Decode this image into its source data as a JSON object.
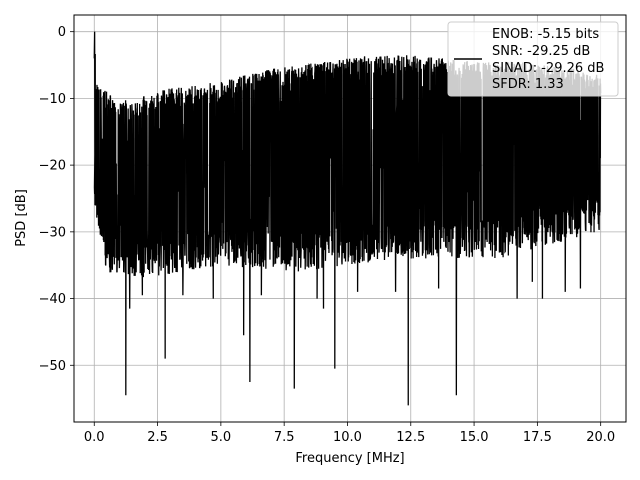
{
  "chart_data": {
    "type": "line",
    "title": "",
    "xlabel": "Frequency [MHz]",
    "ylabel": "PSD [dB]",
    "xlim": [
      -0.8,
      21.0
    ],
    "ylim": [
      -58.5,
      2.5
    ],
    "grid": true,
    "legend_position": "top-right",
    "x_ticks": [
      0.0,
      2.5,
      5.0,
      7.5,
      10.0,
      12.5,
      15.0,
      17.5,
      20.0
    ],
    "x_tick_labels": [
      "0.0",
      "2.5",
      "5.0",
      "7.5",
      "10.0",
      "12.5",
      "15.0",
      "17.5",
      "20.0"
    ],
    "y_ticks": [
      0,
      -10,
      -20,
      -30,
      -40,
      -50
    ],
    "y_tick_labels": [
      "0",
      "−10",
      "−20",
      "−30",
      "−40",
      "−50"
    ],
    "legend": {
      "lines": [
        "ENOB: -5.15 bits",
        "SNR: -29.25 dB",
        "SINAD: -29.26 dB",
        "SFDR: 1.33"
      ]
    },
    "series": [
      {
        "color": "#000000",
        "x_start": 0.0,
        "x_end": 20.0,
        "noise_floor_db": -20,
        "upper_envelope_db": [
          [
            0.0,
            0.0
          ],
          [
            0.1,
            -8
          ],
          [
            1.0,
            -11
          ],
          [
            3.0,
            -9
          ],
          [
            5.0,
            -8
          ],
          [
            7.0,
            -6
          ],
          [
            9.0,
            -5
          ],
          [
            11.0,
            -4
          ],
          [
            13.0,
            -4
          ],
          [
            15.0,
            -5
          ],
          [
            17.0,
            -5
          ],
          [
            19.0,
            -6
          ],
          [
            20.0,
            -7
          ]
        ],
        "lower_envelope_db": [
          [
            0.0,
            -27
          ],
          [
            0.5,
            -36
          ],
          [
            2.0,
            -37
          ],
          [
            5.0,
            -35
          ],
          [
            8.0,
            -36
          ],
          [
            12.0,
            -34
          ],
          [
            16.0,
            -34
          ],
          [
            20.0,
            -30
          ]
        ],
        "notable_dips": [
          {
            "x": 1.25,
            "y": -54.5
          },
          {
            "x": 1.4,
            "y": -41.5
          },
          {
            "x": 1.9,
            "y": -39.5
          },
          {
            "x": 2.8,
            "y": -49
          },
          {
            "x": 3.5,
            "y": -39.5
          },
          {
            "x": 4.7,
            "y": -40
          },
          {
            "x": 5.9,
            "y": -45.5
          },
          {
            "x": 6.15,
            "y": -52.5
          },
          {
            "x": 6.6,
            "y": -39.5
          },
          {
            "x": 7.9,
            "y": -53.5
          },
          {
            "x": 8.8,
            "y": -40
          },
          {
            "x": 9.05,
            "y": -41.5
          },
          {
            "x": 9.5,
            "y": -50.5
          },
          {
            "x": 10.4,
            "y": -39
          },
          {
            "x": 11.9,
            "y": -39
          },
          {
            "x": 12.4,
            "y": -56
          },
          {
            "x": 13.6,
            "y": -38.5
          },
          {
            "x": 14.3,
            "y": -54.5
          },
          {
            "x": 16.7,
            "y": -40
          },
          {
            "x": 17.3,
            "y": -37.5
          },
          {
            "x": 17.7,
            "y": -40
          },
          {
            "x": 18.6,
            "y": -39
          },
          {
            "x": 19.2,
            "y": -38.5
          }
        ]
      }
    ]
  }
}
